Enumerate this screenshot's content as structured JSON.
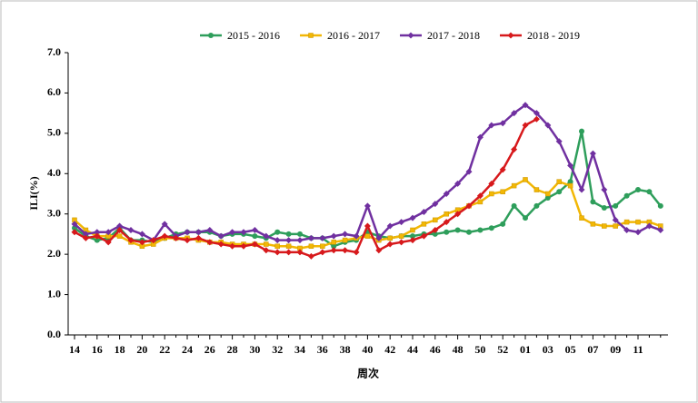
{
  "chart_data": {
    "type": "line",
    "y_label": "ILI(%)",
    "x_label": "周次",
    "categories": [
      "14",
      null,
      "16",
      null,
      "18",
      null,
      "20",
      null,
      "22",
      null,
      "24",
      null,
      "26",
      null,
      "28",
      null,
      "30",
      null,
      "32",
      null,
      "34",
      null,
      "36",
      null,
      "38",
      null,
      "40",
      null,
      "42",
      null,
      "44",
      null,
      "46",
      null,
      "48",
      null,
      "50",
      null,
      "52",
      null,
      "01",
      null,
      "03",
      null,
      "05",
      null,
      "07",
      null,
      "09",
      null,
      "11",
      null,
      null
    ],
    "ylim": [
      0,
      7
    ],
    "yticks": [
      {
        "value": 0,
        "label": "0.0"
      },
      {
        "value": 1,
        "label": "1.0"
      },
      {
        "value": 2,
        "label": "2.0"
      },
      {
        "value": 3,
        "label": "3.0"
      },
      {
        "value": 4,
        "label": "4.0"
      },
      {
        "value": 5,
        "label": "5.0"
      },
      {
        "value": 6,
        "label": "6.0"
      },
      {
        "value": 7,
        "label": "7.0"
      }
    ],
    "legend": "top",
    "series": [
      {
        "name": "2015 - 2016",
        "color": "#2e9e5b",
        "marker": "circle",
        "values": [
          2.65,
          2.45,
          2.35,
          2.4,
          2.65,
          2.35,
          2.35,
          2.3,
          2.4,
          2.5,
          2.55,
          2.55,
          2.55,
          2.45,
          2.5,
          2.5,
          2.45,
          2.4,
          2.55,
          2.5,
          2.5,
          2.4,
          2.4,
          2.2,
          2.3,
          2.35,
          2.55,
          2.45,
          2.4,
          2.45,
          2.45,
          2.5,
          2.5,
          2.55,
          2.6,
          2.55,
          2.6,
          2.65,
          2.75,
          3.2,
          2.9,
          3.2,
          3.4,
          3.55,
          3.8,
          5.05,
          3.3,
          3.15,
          3.2,
          3.45,
          3.6,
          3.55,
          3.2
        ]
      },
      {
        "name": "2016 - 2017",
        "color": "#f2b705",
        "marker": "square",
        "values": [
          2.85,
          2.6,
          2.45,
          2.45,
          2.45,
          2.3,
          2.2,
          2.25,
          2.4,
          2.4,
          2.4,
          2.35,
          2.3,
          2.3,
          2.25,
          2.25,
          2.25,
          2.25,
          2.2,
          2.2,
          2.15,
          2.2,
          2.2,
          2.3,
          2.35,
          2.4,
          2.45,
          2.35,
          2.4,
          2.45,
          2.6,
          2.75,
          2.85,
          3.0,
          3.1,
          3.2,
          3.3,
          3.5,
          3.55,
          3.7,
          3.85,
          3.6,
          3.5,
          3.8,
          3.7,
          2.9,
          2.75,
          2.7,
          2.7,
          2.8,
          2.8,
          2.8,
          2.7
        ]
      },
      {
        "name": "2017 - 2018",
        "color": "#7030a0",
        "marker": "diamond",
        "values": [
          2.75,
          2.5,
          2.55,
          2.55,
          2.7,
          2.6,
          2.5,
          2.35,
          2.75,
          2.45,
          2.55,
          2.55,
          2.6,
          2.45,
          2.55,
          2.55,
          2.6,
          2.45,
          2.35,
          2.35,
          2.35,
          2.4,
          2.4,
          2.45,
          2.5,
          2.45,
          3.2,
          2.4,
          2.7,
          2.8,
          2.9,
          3.05,
          3.25,
          3.5,
          3.75,
          4.05,
          4.9,
          5.2,
          5.25,
          5.5,
          5.7,
          5.5,
          5.2,
          4.8,
          4.2,
          3.6,
          4.5,
          3.6,
          2.85,
          2.6,
          2.55,
          2.7,
          2.6
        ]
      },
      {
        "name": "2018 - 2019",
        "color": "#d7191c",
        "marker": "diamond",
        "values": [
          2.55,
          2.4,
          2.45,
          2.3,
          2.6,
          2.35,
          2.3,
          2.35,
          2.45,
          2.4,
          2.35,
          2.4,
          2.3,
          2.25,
          2.2,
          2.2,
          2.25,
          2.1,
          2.05,
          2.05,
          2.05,
          1.95,
          2.05,
          2.1,
          2.1,
          2.05,
          2.7,
          2.1,
          2.25,
          2.3,
          2.35,
          2.45,
          2.6,
          2.8,
          3.0,
          3.2,
          3.45,
          3.75,
          4.1,
          4.6,
          5.2,
          5.35,
          null,
          null,
          null,
          null,
          null,
          null,
          null,
          null,
          null,
          null,
          null
        ]
      }
    ]
  }
}
